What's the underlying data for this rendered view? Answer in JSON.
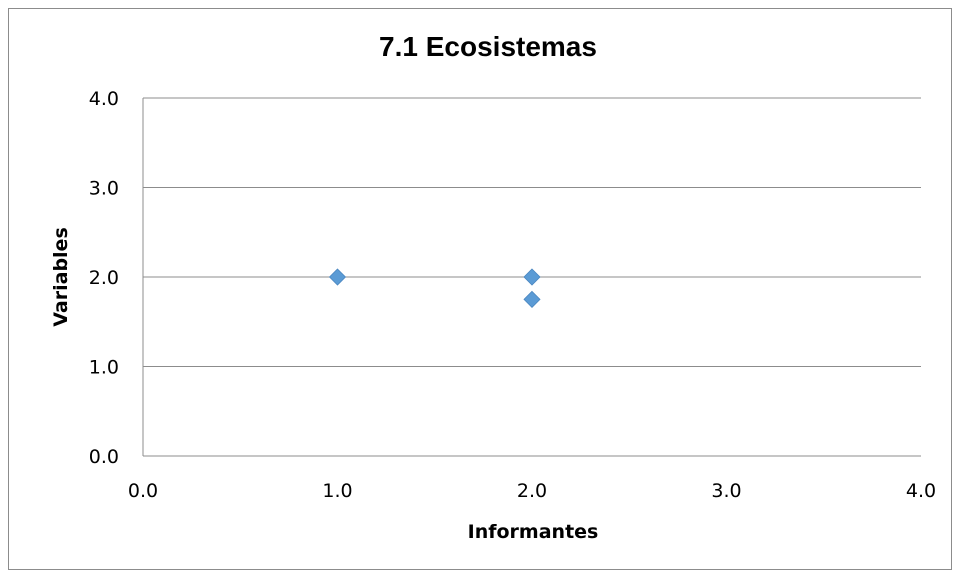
{
  "chart_data": {
    "type": "scatter",
    "title": "7.1 Ecosistemas",
    "xlabel": "Informantes",
    "ylabel": "Variables",
    "xlim": [
      0,
      4
    ],
    "ylim": [
      0,
      4
    ],
    "x_ticks": [
      "0.0",
      "1.0",
      "2.0",
      "3.0",
      "4.0"
    ],
    "y_ticks": [
      "0.0",
      "1.0",
      "2.0",
      "3.0",
      "4.0"
    ],
    "grid": "horizontal",
    "legend": "none",
    "marker": "diamond",
    "series": [
      {
        "color": "#5b9bd5",
        "points": [
          {
            "x": 1.0,
            "y": 2.0
          },
          {
            "x": 2.0,
            "y": 2.0
          },
          {
            "x": 2.0,
            "y": 1.75
          }
        ]
      }
    ]
  }
}
